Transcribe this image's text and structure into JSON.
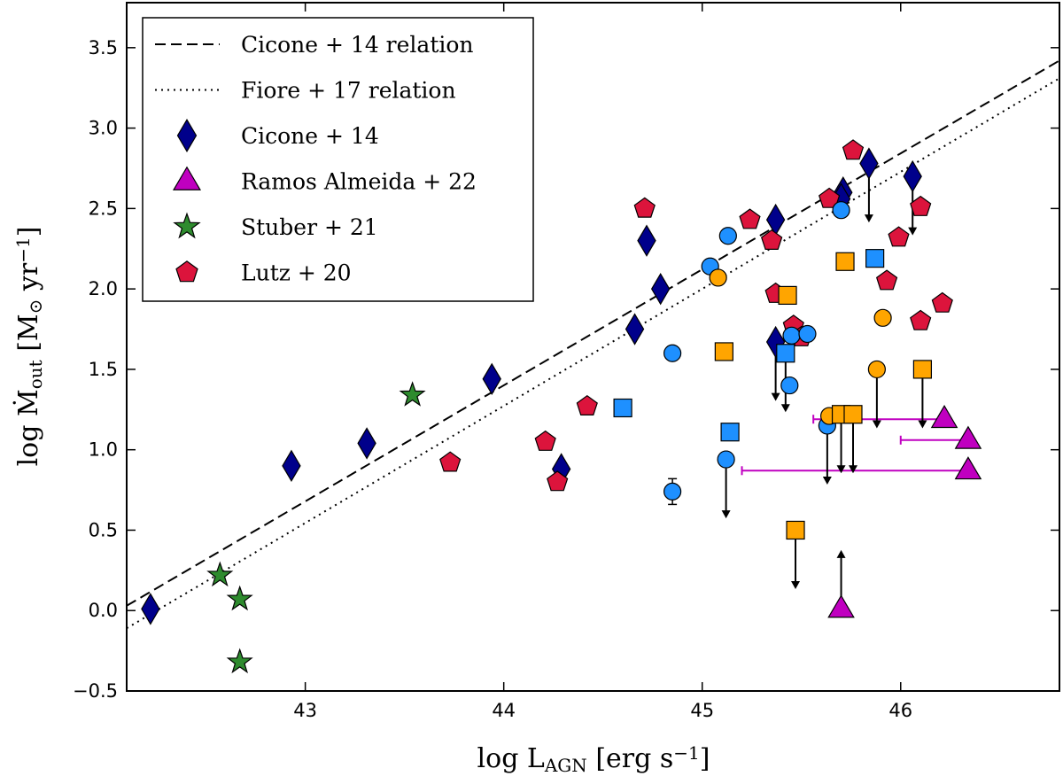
{
  "chart_data": {
    "type": "scatter",
    "xlabel": "log L_AGN [erg s^-1]",
    "ylabel": "log Ṁ_out [M_⊙ yr^-1]",
    "xlim": [
      42.1,
      46.8
    ],
    "ylim": [
      -0.5,
      3.78
    ],
    "xticks": [
      "43",
      "44",
      "45",
      "46"
    ],
    "yticks": [
      "−0.5",
      "0.0",
      "0.5",
      "1.0",
      "1.5",
      "2.0",
      "2.5",
      "3.0",
      "3.5"
    ],
    "grid": false,
    "legend_position": "top-left",
    "relations": [
      {
        "name": "Cicone + 14 relation",
        "style": "dashed",
        "x": [
          42.1,
          46.8
        ],
        "y": [
          0.03,
          3.42
        ]
      },
      {
        "name": "Fiore + 17 relation",
        "style": "dotted",
        "x": [
          42.1,
          46.8
        ],
        "y": [
          -0.11,
          3.31
        ]
      }
    ],
    "legend": [
      {
        "label": "Cicone + 14 relation",
        "kind": "line",
        "style": "dashed"
      },
      {
        "label": "Fiore + 17 relation",
        "kind": "line",
        "style": "dotted"
      },
      {
        "label": "Cicone + 14",
        "kind": "marker",
        "marker": "diamond",
        "color": "#00008b"
      },
      {
        "label": "Ramos Almeida + 22",
        "kind": "marker",
        "marker": "triangle",
        "color": "#c000c0"
      },
      {
        "label": "Stuber + 21",
        "kind": "marker",
        "marker": "star",
        "color": "#2e8b2e"
      },
      {
        "label": "Lutz + 20",
        "kind": "marker",
        "marker": "pentagon",
        "color": "#dc143c"
      }
    ],
    "series": [
      {
        "name": "Cicone + 14",
        "marker": "diamond",
        "color": "#00008b",
        "points": [
          [
            42.22,
            0.01
          ],
          [
            42.93,
            0.9
          ],
          [
            43.31,
            1.04
          ],
          [
            43.94,
            1.44
          ],
          [
            44.29,
            0.88
          ],
          [
            44.66,
            1.75
          ],
          [
            44.72,
            2.3
          ],
          [
            44.79,
            2.0
          ],
          [
            45.37,
            2.43
          ],
          [
            45.37,
            1.67
          ],
          [
            45.71,
            2.6
          ],
          [
            45.7,
            2.56
          ],
          [
            45.84,
            2.78
          ],
          [
            46.06,
            2.7
          ]
        ],
        "upper_limits": [
          [
            45.37,
            1.67
          ],
          [
            45.84,
            2.78
          ],
          [
            46.06,
            2.7
          ]
        ]
      },
      {
        "name": "Ramos Almeida + 22",
        "marker": "triangle",
        "color": "#c000c0",
        "points": [
          [
            46.22,
            1.19
          ],
          [
            46.34,
            1.06
          ],
          [
            46.34,
            0.87
          ],
          [
            45.7,
            0.01
          ]
        ],
        "lower_limits": [
          [
            45.7,
            0.01
          ]
        ],
        "xerr_lower": [
          [
            46.22,
            1.19,
            45.56
          ],
          [
            46.34,
            1.06,
            46.0
          ],
          [
            46.34,
            0.87,
            45.2
          ]
        ]
      },
      {
        "name": "Stuber + 21",
        "marker": "star",
        "color": "#2e8b2e",
        "points": [
          [
            42.57,
            0.22
          ],
          [
            42.67,
            0.07
          ],
          [
            42.67,
            -0.32
          ],
          [
            43.54,
            1.34
          ]
        ]
      },
      {
        "name": "Lutz + 20",
        "marker": "pentagon",
        "color": "#dc143c",
        "points": [
          [
            43.73,
            0.92
          ],
          [
            44.21,
            1.05
          ],
          [
            44.27,
            0.8
          ],
          [
            44.42,
            1.27
          ],
          [
            44.71,
            2.5
          ],
          [
            45.24,
            2.43
          ],
          [
            45.35,
            2.3
          ],
          [
            45.37,
            1.97
          ],
          [
            45.46,
            1.77
          ],
          [
            45.5,
            1.7
          ],
          [
            45.64,
            2.56
          ],
          [
            45.76,
            2.86
          ],
          [
            45.93,
            2.05
          ],
          [
            45.99,
            2.32
          ],
          [
            46.1,
            1.8
          ],
          [
            46.1,
            2.51
          ],
          [
            46.21,
            1.91
          ]
        ]
      },
      {
        "name": "",
        "marker": "circle",
        "color": "#1e90ff",
        "points": [
          [
            44.85,
            1.6
          ],
          [
            44.85,
            0.74
          ],
          [
            45.04,
            2.14
          ],
          [
            45.13,
            2.33
          ],
          [
            45.12,
            0.94
          ],
          [
            45.45,
            1.71
          ],
          [
            45.53,
            1.72
          ],
          [
            45.44,
            1.4
          ],
          [
            45.63,
            1.15
          ],
          [
            45.7,
            2.49
          ]
        ],
        "upper_limits": [
          [
            45.12,
            0.94
          ],
          [
            45.63,
            1.15
          ]
        ],
        "yerr": [
          [
            44.85,
            0.74,
            0.08
          ]
        ]
      },
      {
        "name": "",
        "marker": "square",
        "color": "#1e90ff",
        "points": [
          [
            44.6,
            1.26
          ],
          [
            45.14,
            1.11
          ],
          [
            45.42,
            1.6
          ],
          [
            45.87,
            2.19
          ]
        ],
        "upper_limits": [
          [
            45.42,
            1.6
          ]
        ]
      },
      {
        "name": "",
        "marker": "circle",
        "color": "#ffa500",
        "points": [
          [
            45.08,
            2.07
          ],
          [
            45.64,
            1.21
          ],
          [
            45.91,
            1.82
          ],
          [
            45.88,
            1.5
          ]
        ],
        "upper_limits": [
          [
            45.88,
            1.5
          ]
        ]
      },
      {
        "name": "",
        "marker": "square",
        "color": "#ffa500",
        "points": [
          [
            45.11,
            1.61
          ],
          [
            45.43,
            1.96
          ],
          [
            45.47,
            0.5
          ],
          [
            45.7,
            1.22
          ],
          [
            45.76,
            1.22
          ],
          [
            45.72,
            2.17
          ],
          [
            46.11,
            1.5
          ]
        ],
        "upper_limits": [
          [
            45.47,
            0.5
          ],
          [
            45.7,
            1.22
          ],
          [
            45.76,
            1.22
          ],
          [
            46.11,
            1.5
          ]
        ]
      }
    ]
  }
}
